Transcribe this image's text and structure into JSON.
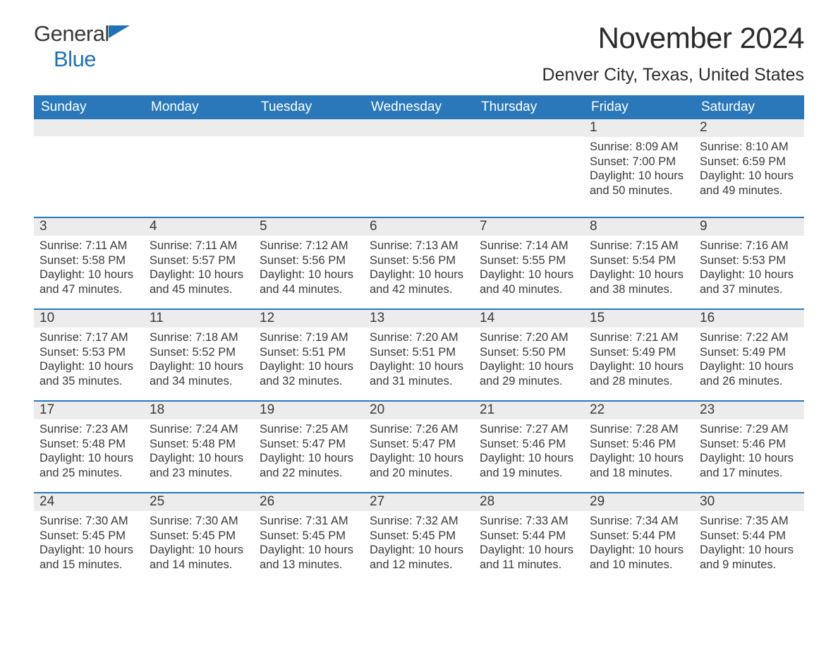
{
  "logo": {
    "word1": "General",
    "word2": "Blue",
    "flag_color": "#1f72b8"
  },
  "title": "November 2024",
  "location": "Denver City, Texas, United States",
  "header_bg": "#2a78ba",
  "header_fg": "#ffffff",
  "daynum_bg": "#ececec",
  "days_of_week": [
    "Sunday",
    "Monday",
    "Tuesday",
    "Wednesday",
    "Thursday",
    "Friday",
    "Saturday"
  ],
  "weeks": [
    [
      null,
      null,
      null,
      null,
      null,
      {
        "n": "1",
        "sunrise": "Sunrise: 8:09 AM",
        "sunset": "Sunset: 7:00 PM",
        "daylight1": "Daylight: 10 hours",
        "daylight2": "and 50 minutes."
      },
      {
        "n": "2",
        "sunrise": "Sunrise: 8:10 AM",
        "sunset": "Sunset: 6:59 PM",
        "daylight1": "Daylight: 10 hours",
        "daylight2": "and 49 minutes."
      }
    ],
    [
      {
        "n": "3",
        "sunrise": "Sunrise: 7:11 AM",
        "sunset": "Sunset: 5:58 PM",
        "daylight1": "Daylight: 10 hours",
        "daylight2": "and 47 minutes."
      },
      {
        "n": "4",
        "sunrise": "Sunrise: 7:11 AM",
        "sunset": "Sunset: 5:57 PM",
        "daylight1": "Daylight: 10 hours",
        "daylight2": "and 45 minutes."
      },
      {
        "n": "5",
        "sunrise": "Sunrise: 7:12 AM",
        "sunset": "Sunset: 5:56 PM",
        "daylight1": "Daylight: 10 hours",
        "daylight2": "and 44 minutes."
      },
      {
        "n": "6",
        "sunrise": "Sunrise: 7:13 AM",
        "sunset": "Sunset: 5:56 PM",
        "daylight1": "Daylight: 10 hours",
        "daylight2": "and 42 minutes."
      },
      {
        "n": "7",
        "sunrise": "Sunrise: 7:14 AM",
        "sunset": "Sunset: 5:55 PM",
        "daylight1": "Daylight: 10 hours",
        "daylight2": "and 40 minutes."
      },
      {
        "n": "8",
        "sunrise": "Sunrise: 7:15 AM",
        "sunset": "Sunset: 5:54 PM",
        "daylight1": "Daylight: 10 hours",
        "daylight2": "and 38 minutes."
      },
      {
        "n": "9",
        "sunrise": "Sunrise: 7:16 AM",
        "sunset": "Sunset: 5:53 PM",
        "daylight1": "Daylight: 10 hours",
        "daylight2": "and 37 minutes."
      }
    ],
    [
      {
        "n": "10",
        "sunrise": "Sunrise: 7:17 AM",
        "sunset": "Sunset: 5:53 PM",
        "daylight1": "Daylight: 10 hours",
        "daylight2": "and 35 minutes."
      },
      {
        "n": "11",
        "sunrise": "Sunrise: 7:18 AM",
        "sunset": "Sunset: 5:52 PM",
        "daylight1": "Daylight: 10 hours",
        "daylight2": "and 34 minutes."
      },
      {
        "n": "12",
        "sunrise": "Sunrise: 7:19 AM",
        "sunset": "Sunset: 5:51 PM",
        "daylight1": "Daylight: 10 hours",
        "daylight2": "and 32 minutes."
      },
      {
        "n": "13",
        "sunrise": "Sunrise: 7:20 AM",
        "sunset": "Sunset: 5:51 PM",
        "daylight1": "Daylight: 10 hours",
        "daylight2": "and 31 minutes."
      },
      {
        "n": "14",
        "sunrise": "Sunrise: 7:20 AM",
        "sunset": "Sunset: 5:50 PM",
        "daylight1": "Daylight: 10 hours",
        "daylight2": "and 29 minutes."
      },
      {
        "n": "15",
        "sunrise": "Sunrise: 7:21 AM",
        "sunset": "Sunset: 5:49 PM",
        "daylight1": "Daylight: 10 hours",
        "daylight2": "and 28 minutes."
      },
      {
        "n": "16",
        "sunrise": "Sunrise: 7:22 AM",
        "sunset": "Sunset: 5:49 PM",
        "daylight1": "Daylight: 10 hours",
        "daylight2": "and 26 minutes."
      }
    ],
    [
      {
        "n": "17",
        "sunrise": "Sunrise: 7:23 AM",
        "sunset": "Sunset: 5:48 PM",
        "daylight1": "Daylight: 10 hours",
        "daylight2": "and 25 minutes."
      },
      {
        "n": "18",
        "sunrise": "Sunrise: 7:24 AM",
        "sunset": "Sunset: 5:48 PM",
        "daylight1": "Daylight: 10 hours",
        "daylight2": "and 23 minutes."
      },
      {
        "n": "19",
        "sunrise": "Sunrise: 7:25 AM",
        "sunset": "Sunset: 5:47 PM",
        "daylight1": "Daylight: 10 hours",
        "daylight2": "and 22 minutes."
      },
      {
        "n": "20",
        "sunrise": "Sunrise: 7:26 AM",
        "sunset": "Sunset: 5:47 PM",
        "daylight1": "Daylight: 10 hours",
        "daylight2": "and 20 minutes."
      },
      {
        "n": "21",
        "sunrise": "Sunrise: 7:27 AM",
        "sunset": "Sunset: 5:46 PM",
        "daylight1": "Daylight: 10 hours",
        "daylight2": "and 19 minutes."
      },
      {
        "n": "22",
        "sunrise": "Sunrise: 7:28 AM",
        "sunset": "Sunset: 5:46 PM",
        "daylight1": "Daylight: 10 hours",
        "daylight2": "and 18 minutes."
      },
      {
        "n": "23",
        "sunrise": "Sunrise: 7:29 AM",
        "sunset": "Sunset: 5:46 PM",
        "daylight1": "Daylight: 10 hours",
        "daylight2": "and 17 minutes."
      }
    ],
    [
      {
        "n": "24",
        "sunrise": "Sunrise: 7:30 AM",
        "sunset": "Sunset: 5:45 PM",
        "daylight1": "Daylight: 10 hours",
        "daylight2": "and 15 minutes."
      },
      {
        "n": "25",
        "sunrise": "Sunrise: 7:30 AM",
        "sunset": "Sunset: 5:45 PM",
        "daylight1": "Daylight: 10 hours",
        "daylight2": "and 14 minutes."
      },
      {
        "n": "26",
        "sunrise": "Sunrise: 7:31 AM",
        "sunset": "Sunset: 5:45 PM",
        "daylight1": "Daylight: 10 hours",
        "daylight2": "and 13 minutes."
      },
      {
        "n": "27",
        "sunrise": "Sunrise: 7:32 AM",
        "sunset": "Sunset: 5:45 PM",
        "daylight1": "Daylight: 10 hours",
        "daylight2": "and 12 minutes."
      },
      {
        "n": "28",
        "sunrise": "Sunrise: 7:33 AM",
        "sunset": "Sunset: 5:44 PM",
        "daylight1": "Daylight: 10 hours",
        "daylight2": "and 11 minutes."
      },
      {
        "n": "29",
        "sunrise": "Sunrise: 7:34 AM",
        "sunset": "Sunset: 5:44 PM",
        "daylight1": "Daylight: 10 hours",
        "daylight2": "and 10 minutes."
      },
      {
        "n": "30",
        "sunrise": "Sunrise: 7:35 AM",
        "sunset": "Sunset: 5:44 PM",
        "daylight1": "Daylight: 10 hours",
        "daylight2": "and 9 minutes."
      }
    ]
  ]
}
